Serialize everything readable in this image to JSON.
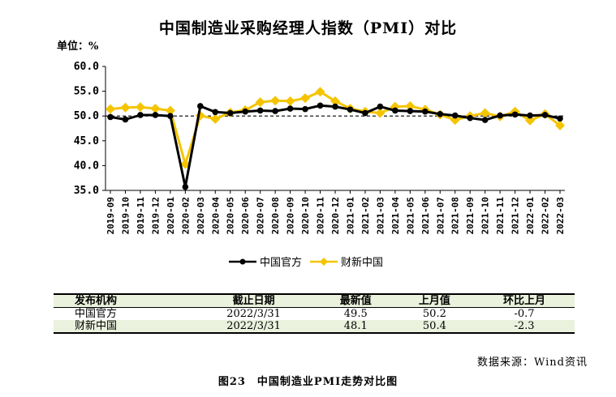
{
  "title": "中国制造业采购经理人指数（PMI）对比",
  "unit_label": "单位：%",
  "legend": [
    {
      "name": "中国官方",
      "color": "#000000"
    },
    {
      "name": "财新中国",
      "color": "#f5c400"
    }
  ],
  "table": {
    "headers": [
      "发布机构",
      "截止日期",
      "最新值",
      "上月值",
      "环比上月"
    ],
    "rows": [
      [
        "中国官方",
        "2022/3/31",
        "49.5",
        "50.2",
        "-0.7"
      ],
      [
        "财新中国",
        "2022/3/31",
        "48.1",
        "50.4",
        "-2.3"
      ]
    ]
  },
  "source": "数据来源：Wind资讯",
  "caption": "图23　中国制造业PMI走势对比图",
  "chart_data": {
    "type": "line",
    "title": "中国制造业采购经理人指数（PMI）对比",
    "ylabel": "单位：%",
    "ylim": [
      35.0,
      60.0
    ],
    "yticks": [
      "35.0",
      "40.0",
      "45.0",
      "50.0",
      "55.0",
      "60.0"
    ],
    "reference_line": 50.0,
    "grid": false,
    "legend_position": "bottom",
    "categories": [
      "2019-09",
      "2019-10",
      "2019-11",
      "2019-12",
      "2020-01",
      "2020-02",
      "2020-03",
      "2020-04",
      "2020-05",
      "2020-06",
      "2020-07",
      "2020-08",
      "2020-09",
      "2020-10",
      "2020-11",
      "2020-12",
      "2021-01",
      "2021-02",
      "2021-03",
      "2021-04",
      "2021-05",
      "2021-06",
      "2021-07",
      "2021-08",
      "2021-09",
      "2021-10",
      "2021-11",
      "2021-12",
      "2022-01",
      "2022-02",
      "2022-03"
    ],
    "series": [
      {
        "name": "中国官方",
        "color": "#000000",
        "values": [
          49.8,
          49.3,
          50.2,
          50.2,
          50.0,
          35.7,
          52.0,
          50.8,
          50.6,
          50.9,
          51.1,
          51.0,
          51.5,
          51.4,
          52.1,
          51.9,
          51.3,
          50.6,
          51.9,
          51.1,
          51.0,
          50.9,
          50.4,
          50.1,
          49.6,
          49.2,
          50.1,
          50.3,
          50.1,
          50.2,
          49.5
        ]
      },
      {
        "name": "财新中国",
        "color": "#f5c400",
        "values": [
          51.4,
          51.7,
          51.8,
          51.5,
          51.1,
          40.3,
          50.1,
          49.4,
          50.7,
          51.2,
          52.8,
          53.1,
          53.0,
          53.6,
          54.9,
          53.0,
          51.5,
          50.9,
          50.6,
          51.9,
          52.0,
          51.3,
          50.3,
          49.2,
          50.0,
          50.6,
          49.9,
          50.9,
          49.1,
          50.4,
          48.1
        ]
      }
    ]
  }
}
